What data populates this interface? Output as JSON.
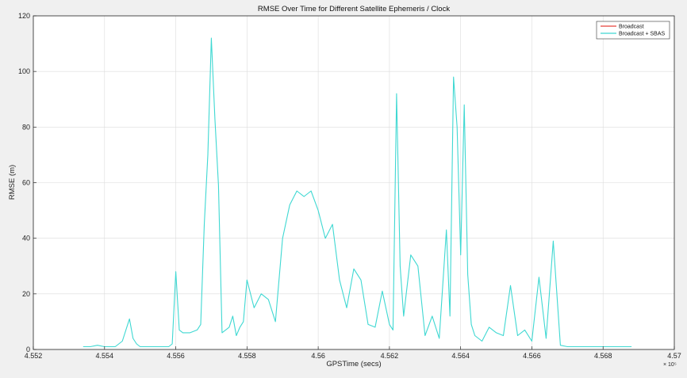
{
  "chart_data": {
    "type": "line",
    "title": "RMSE Over Time for Different Satellite Ephemeris / Clock",
    "xlabel": "GPSTime (secs)",
    "ylabel": "RMSE (m)",
    "x_exponent_label": "× 10⁵",
    "xlim": [
      4.552,
      4.57
    ],
    "ylim": [
      0,
      120
    ],
    "x_ticks": [
      "4.552",
      "4.554",
      "4.556",
      "4.558",
      "4.56",
      "4.562",
      "4.564",
      "4.566",
      "4.568",
      "4.57"
    ],
    "y_ticks": [
      "0",
      "20",
      "40",
      "60",
      "80",
      "100",
      "120"
    ],
    "grid": true,
    "legend_position": "top-right",
    "series": [
      {
        "name": "Broadcast",
        "color": "#e8413a",
        "x": [],
        "y": []
      },
      {
        "name": "Broadcast + SBAS",
        "color": "#3fd8d2",
        "x": [
          4.5534,
          4.5536,
          4.5538,
          4.554,
          4.5543,
          4.5545,
          4.5547,
          4.5548,
          4.5549,
          4.555,
          4.5552,
          4.5555,
          4.5558,
          4.5559,
          4.556,
          4.5561,
          4.5562,
          4.5564,
          4.5566,
          4.5567,
          4.5568,
          4.5569,
          4.557,
          4.5571,
          4.5572,
          4.5573,
          4.5575,
          4.5576,
          4.5577,
          4.5578,
          4.5579,
          4.558,
          4.5582,
          4.5584,
          4.5586,
          4.5588,
          4.559,
          4.5592,
          4.5594,
          4.5596,
          4.5598,
          4.56,
          4.5602,
          4.5604,
          4.5606,
          4.5608,
          4.561,
          4.5612,
          4.5614,
          4.5616,
          4.5618,
          4.562,
          4.5621,
          4.5622,
          4.5623,
          4.5624,
          4.5626,
          4.5628,
          4.563,
          4.5632,
          4.5634,
          4.5636,
          4.5637,
          4.5638,
          4.5639,
          4.564,
          4.5641,
          4.5642,
          4.5643,
          4.5644,
          4.5646,
          4.5648,
          4.565,
          4.5652,
          4.5654,
          4.5656,
          4.5658,
          4.566,
          4.5662,
          4.5664,
          4.5666,
          4.5668,
          4.567,
          4.5672,
          4.5674,
          4.5676,
          4.5677,
          4.5678,
          4.568,
          4.5682,
          4.5684,
          4.5686,
          4.5688
        ],
        "y": [
          1,
          1,
          1.5,
          1,
          1,
          3,
          11,
          4,
          2,
          1,
          1,
          1,
          1,
          2,
          28,
          7,
          6,
          6,
          7,
          9,
          45,
          70,
          112,
          83,
          59,
          6,
          8,
          12,
          5,
          8,
          10,
          25,
          15,
          20,
          18,
          10,
          40,
          52,
          57,
          55,
          57,
          50,
          40,
          45,
          25,
          15,
          29,
          25,
          9,
          8,
          21,
          9,
          7,
          92,
          30,
          12,
          34,
          30,
          5,
          12,
          4,
          43,
          12,
          98,
          80,
          34,
          88,
          27,
          9,
          5,
          3,
          8,
          6,
          5,
          23,
          5,
          7,
          3,
          26,
          4,
          39,
          1.5,
          1,
          1,
          1,
          1,
          1,
          1,
          1,
          1,
          1,
          1,
          1
        ]
      }
    ]
  }
}
